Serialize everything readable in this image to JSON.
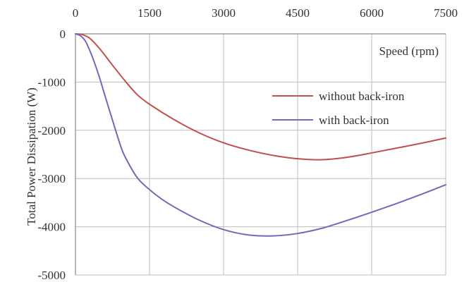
{
  "chart_data": {
    "type": "line",
    "title": "",
    "xlabel": "Speed (rpm)",
    "ylabel": "Total Power Dissipation (W)",
    "xlim": [
      0,
      7500
    ],
    "ylim": [
      -5000,
      0
    ],
    "x_ticks": [
      0,
      1500,
      3000,
      4500,
      6000,
      7500
    ],
    "y_ticks": [
      0,
      -1000,
      -2000,
      -3000,
      -4000,
      -5000
    ],
    "x_tick_labels": [
      "0",
      "1500",
      "3000",
      "4500",
      "6000",
      "7500"
    ],
    "y_tick_labels": [
      "0",
      "-1000",
      "-2000",
      "-3000",
      "-4000",
      "-5000"
    ],
    "x_axis_position": "top",
    "grid": true,
    "legend_position": "right",
    "series": [
      {
        "name": "without back-iron",
        "color": "#c0504d",
        "x": [
          0,
          150,
          300,
          500,
          750,
          1000,
          1250,
          1500,
          2000,
          2500,
          3000,
          3500,
          4000,
          4500,
          5000,
          5500,
          6000,
          6500,
          7000,
          7500
        ],
        "y": [
          0,
          -20,
          -100,
          -320,
          -650,
          -970,
          -1260,
          -1460,
          -1780,
          -2050,
          -2260,
          -2410,
          -2520,
          -2590,
          -2610,
          -2560,
          -2470,
          -2370,
          -2270,
          -2160
        ]
      },
      {
        "name": "with back-iron",
        "color": "#7a66b8",
        "x": [
          0,
          100,
          200,
          300,
          400,
          500,
          600,
          750,
          900,
          1000,
          1250,
          1500,
          1750,
          2000,
          2500,
          3000,
          3500,
          4000,
          4500,
          5000,
          5500,
          6000,
          6500,
          7000,
          7500
        ],
        "y": [
          0,
          -40,
          -150,
          -370,
          -640,
          -950,
          -1290,
          -1790,
          -2280,
          -2540,
          -2980,
          -3230,
          -3430,
          -3590,
          -3860,
          -4060,
          -4170,
          -4190,
          -4140,
          -4030,
          -3870,
          -3700,
          -3520,
          -3330,
          -3130
        ]
      }
    ]
  }
}
